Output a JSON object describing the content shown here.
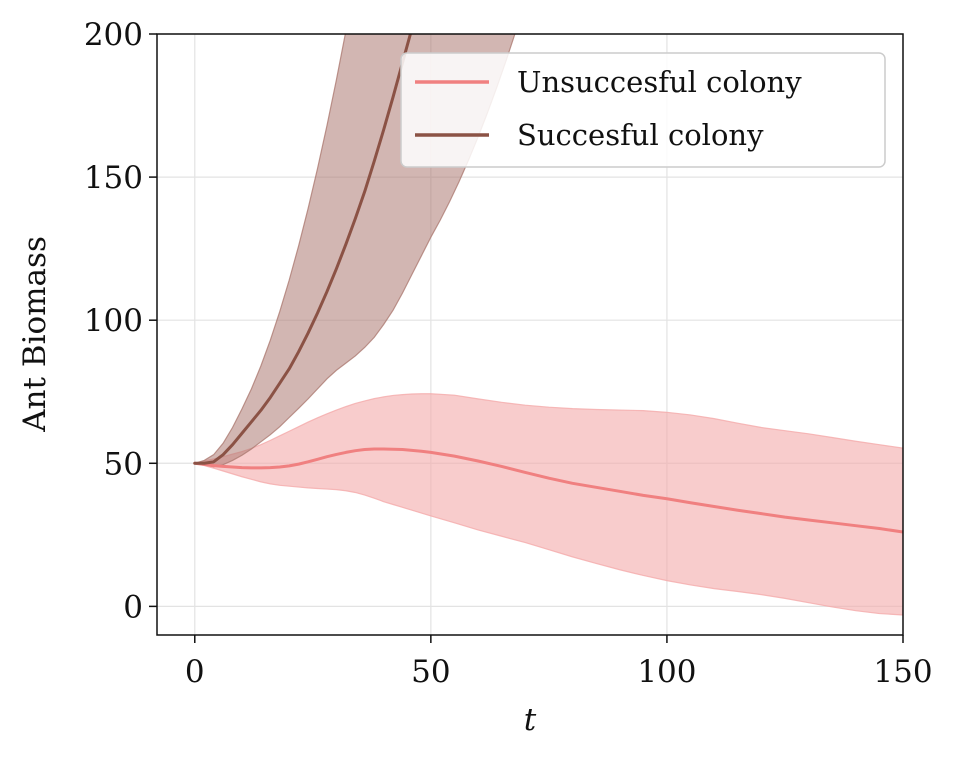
{
  "chart_data": {
    "type": "line",
    "xlabel": "t",
    "ylabel": "Ant Biomass",
    "xlim": [
      -8,
      150
    ],
    "ylim": [
      -10,
      200
    ],
    "xticks": [
      0,
      50,
      100,
      150
    ],
    "yticks": [
      0,
      50,
      100,
      150,
      200
    ],
    "grid": true,
    "legend_position": "top-right",
    "series": [
      {
        "name": "Unsuccesful colony",
        "color": "#f08080",
        "band_color": "#f4aaaa",
        "band_opacity": 0.6,
        "x": [
          0,
          2,
          4,
          6,
          8,
          10,
          12,
          14,
          16,
          18,
          20,
          22,
          24,
          26,
          28,
          30,
          32,
          34,
          36,
          38,
          40,
          42,
          44,
          46,
          48,
          50,
          55,
          60,
          65,
          70,
          75,
          80,
          85,
          90,
          95,
          100,
          105,
          110,
          115,
          120,
          125,
          130,
          135,
          140,
          145,
          150
        ],
        "mean": [
          50,
          49.6,
          49.2,
          48.9,
          48.7,
          48.5,
          48.4,
          48.4,
          48.5,
          48.7,
          49.1,
          49.7,
          50.5,
          51.4,
          52.3,
          53.1,
          53.8,
          54.4,
          54.8,
          55.0,
          55.0,
          54.9,
          54.8,
          54.5,
          54.2,
          53.8,
          52.5,
          50.8,
          48.9,
          46.8,
          44.8,
          43.0,
          41.6,
          40.2,
          38.8,
          37.6,
          36.2,
          34.9,
          33.6,
          32.4,
          31.2,
          30.2,
          29.2,
          28.2,
          27.2,
          26.0
        ],
        "upper": [
          50,
          50.8,
          51.5,
          52.3,
          53.2,
          54.1,
          55.2,
          56.5,
          58.0,
          59.6,
          61.2,
          62.8,
          64.4,
          65.9,
          67.3,
          68.6,
          69.8,
          70.9,
          71.8,
          72.6,
          73.2,
          73.7,
          74.0,
          74.2,
          74.3,
          74.3,
          73.8,
          72.5,
          71.3,
          70.3,
          69.6,
          69.1,
          68.8,
          68.6,
          68.4,
          67.8,
          66.9,
          65.6,
          64.0,
          62.5,
          61.4,
          60.3,
          59.0,
          57.7,
          56.5,
          55.3
        ],
        "lower": [
          50,
          49.2,
          48.3,
          47.3,
          46.3,
          45.3,
          44.4,
          43.5,
          42.8,
          42.3,
          42.0,
          41.7,
          41.4,
          41.2,
          41.0,
          40.8,
          40.4,
          39.8,
          38.9,
          37.8,
          36.6,
          35.6,
          34.6,
          33.6,
          32.6,
          31.6,
          29.2,
          26.7,
          24.5,
          22.3,
          19.8,
          17.3,
          15.0,
          12.8,
          10.8,
          9.0,
          7.5,
          6.2,
          5.2,
          4.1,
          2.8,
          1.3,
          -0.2,
          -1.5,
          -2.5,
          -3.0
        ]
      },
      {
        "name": "Succesful colony",
        "color": "#8b5245",
        "band_color": "#ad7a72",
        "band_opacity": 0.55,
        "x": [
          0,
          2,
          4,
          6,
          8,
          10,
          12,
          14,
          16,
          18,
          20,
          22,
          24,
          26,
          28,
          30,
          32,
          34,
          36,
          38,
          40,
          42,
          44,
          46,
          48,
          50,
          52,
          54,
          56,
          58,
          60,
          62,
          64,
          66,
          68
        ],
        "mean": [
          50,
          50.0,
          50.5,
          53.0,
          56.5,
          60.5,
          64.5,
          68.5,
          73.0,
          78.0,
          83.0,
          89.0,
          95.5,
          102.5,
          110.0,
          118.0,
          126.5,
          135.5,
          145.0,
          155.5,
          166.5,
          178.0,
          190.0,
          202.0,
          214.0,
          226.0,
          238.0,
          250.0,
          262.0,
          274.0,
          286.0,
          298.0,
          310.0,
          322.0,
          334.0
        ],
        "upper": [
          50,
          51.0,
          53.0,
          57.0,
          62.5,
          69.0,
          76.0,
          84.0,
          93.0,
          103.0,
          114.0,
          126.0,
          139.0,
          153.0,
          168.0,
          184.0,
          201.0,
          219.0,
          238.0,
          258.0,
          279.0,
          300.0,
          322.0,
          344.0,
          367.0,
          390.0,
          413.0,
          436.0,
          460.0,
          484.0,
          508.0,
          532.0,
          556.0,
          580.0,
          604.0
        ],
        "lower": [
          50,
          49.5,
          48.8,
          49.5,
          51.0,
          52.8,
          55.0,
          57.5,
          60.0,
          62.8,
          66.0,
          69.2,
          72.5,
          76.0,
          79.5,
          82.5,
          85.0,
          87.5,
          90.5,
          94.0,
          98.5,
          103.5,
          109.5,
          116.0,
          122.5,
          129.0,
          135.0,
          141.5,
          148.5,
          156.0,
          164.0,
          172.5,
          181.5,
          191.0,
          201.0
        ]
      }
    ]
  }
}
